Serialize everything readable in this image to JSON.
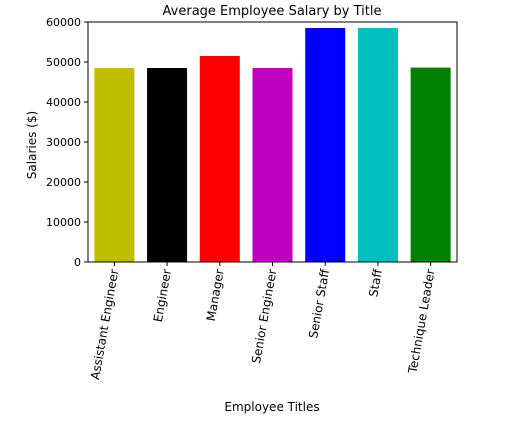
{
  "chart_data": {
    "type": "bar",
    "title": "Average Employee Salary by Title",
    "xlabel": "Employee Titles",
    "ylabel": "Salaries ($)",
    "ylim": [
      0,
      60000
    ],
    "yticks": [
      0,
      10000,
      20000,
      30000,
      40000,
      50000,
      60000
    ],
    "ytick_labels": [
      "0",
      "10000",
      "20000",
      "30000",
      "40000",
      "50000",
      "60000"
    ],
    "grid": false,
    "categories": [
      "Assistant Engineer",
      "Engineer",
      "Manager",
      "Senior Engineer",
      "Senior Staff",
      "Staff",
      "Technique Leader"
    ],
    "values": [
      48500,
      48500,
      51500,
      48500,
      58500,
      58500,
      48600
    ],
    "colors": [
      "#bfbf00",
      "#000000",
      "#ff0000",
      "#bf00bf",
      "#0000ff",
      "#00bfbf",
      "#008000"
    ]
  }
}
